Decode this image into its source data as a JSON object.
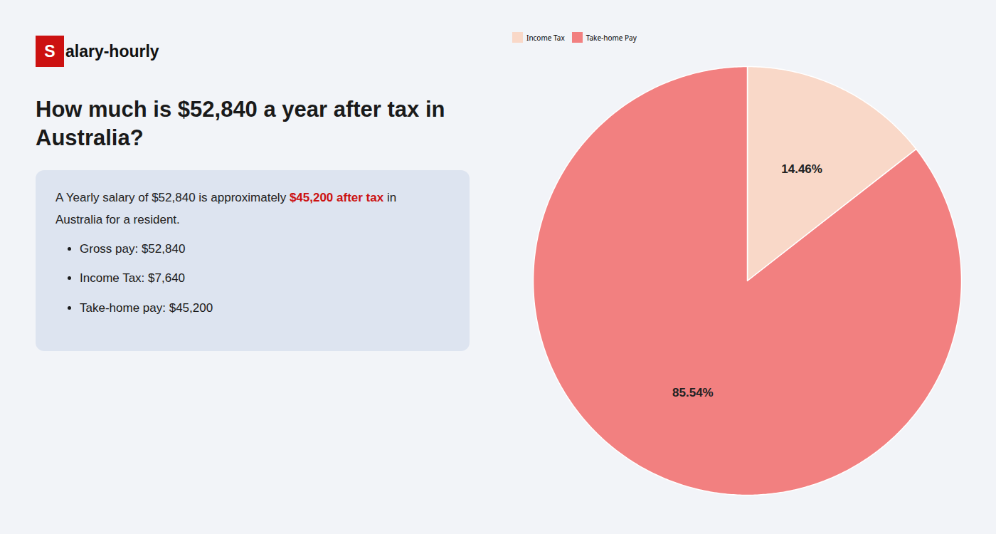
{
  "chart_data": {
    "type": "pie",
    "title": "How much is $52,840 a year after tax in Australia?",
    "annotations": [
      {
        "text": "S",
        "color": "#cc1111"
      },
      {
        "text": "alary-hourly"
      },
      {
        "text": "A Yearly salary of $52,840 is approximately "
      },
      {
        "text": "$45,200 after tax",
        "color": "#cc1111"
      },
      {
        "text": " in"
      },
      {
        "text": "Australia for a resident."
      },
      {
        "text": "Gross pay: $52,840"
      },
      {
        "text": "Income Tax: $7,640"
      },
      {
        "text": "Take-home pay: $45,200"
      }
    ],
    "categories": [
      "Income Tax",
      "Take-home Pay"
    ],
    "values": [
      14.46,
      85.54
    ],
    "value_labels": [
      "14.46%",
      "85.54%"
    ],
    "colors": [
      "#f9d8c8",
      "#f28080"
    ],
    "data_labels": true,
    "legend": "top"
  }
}
